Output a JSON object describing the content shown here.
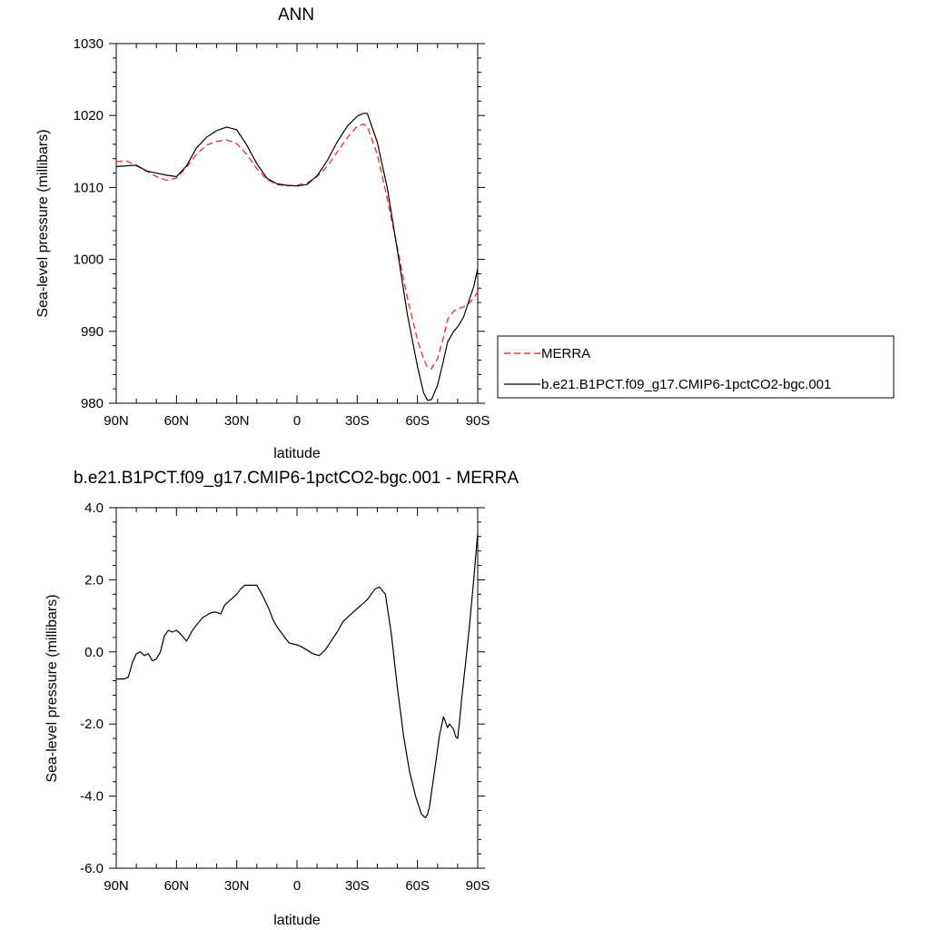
{
  "chart_data": [
    {
      "type": "line",
      "title": "ANN",
      "xlabel": "latitude",
      "ylabel": "Sea-level pressure (millibars)",
      "xlim": [
        90,
        -90
      ],
      "ylim": [
        980,
        1030
      ],
      "x_ticks": [
        90,
        60,
        30,
        0,
        -30,
        -60,
        -90
      ],
      "x_tick_labels": [
        "90N",
        "60N",
        "30N",
        "0",
        "30S",
        "60S",
        "90S"
      ],
      "y_ticks": [
        980,
        990,
        1000,
        1010,
        1020,
        1030
      ],
      "y_tick_labels": [
        "980",
        "990",
        "1000",
        "1010",
        "1020",
        "1030"
      ],
      "grid": false,
      "legend_position": "right",
      "x": [
        90,
        85,
        80,
        75,
        70,
        65,
        60,
        55,
        50,
        45,
        40,
        35,
        30,
        25,
        20,
        15,
        10,
        5,
        0,
        -5,
        -10,
        -15,
        -20,
        -25,
        -30,
        -33,
        -35,
        -40,
        -45,
        -50,
        -55,
        -60,
        -63,
        -65,
        -67,
        -70,
        -73,
        -75,
        -78,
        -80,
        -83,
        -85,
        -88,
        -90
      ],
      "series": [
        {
          "name": "MERRA",
          "color": "#e8383d",
          "dash": "dashed",
          "values": [
            1013.6,
            1013.7,
            1013.0,
            1012.3,
            1011.5,
            1011.0,
            1011.3,
            1012.8,
            1014.6,
            1015.9,
            1016.4,
            1016.6,
            1016.1,
            1014.6,
            1012.6,
            1011.1,
            1010.4,
            1010.2,
            1010.3,
            1010.6,
            1011.5,
            1012.9,
            1014.9,
            1016.9,
            1018.5,
            1018.8,
            1018.5,
            1014.6,
            1008.4,
            1001.6,
            994.6,
            988.8,
            986.2,
            985.0,
            984.8,
            986.2,
            989.2,
            991.6,
            992.8,
            993.1,
            993.4,
            993.7,
            994.6,
            995.5
          ]
        },
        {
          "name": "b.e21.B1PCT.f09_g17.CMIP6-1pctCO2-bgc.001",
          "color": "#000000",
          "dash": "solid",
          "values": [
            1012.9,
            1013.0,
            1013.1,
            1012.3,
            1012.0,
            1011.7,
            1011.5,
            1013.0,
            1015.5,
            1017.0,
            1017.9,
            1018.4,
            1018.0,
            1015.9,
            1013.3,
            1011.3,
            1010.5,
            1010.3,
            1010.2,
            1010.4,
            1011.6,
            1013.7,
            1016.3,
            1018.5,
            1019.9,
            1020.3,
            1020.3,
            1016.3,
            1009.9,
            1001.2,
            992.3,
            985.1,
            981.5,
            980.4,
            980.5,
            982.5,
            986.0,
            988.5,
            990.0,
            990.6,
            992.0,
            993.7,
            996.2,
            998.7
          ]
        }
      ]
    },
    {
      "type": "line",
      "title": "b.e21.B1PCT.f09_g17.CMIP6-1pctCO2-bgc.001 - MERRA",
      "xlabel": "latitude",
      "ylabel": "Sea-level pressure (millibars)",
      "xlim": [
        90,
        -90
      ],
      "ylim": [
        -6.0,
        4.0
      ],
      "x_ticks": [
        90,
        60,
        30,
        0,
        -30,
        -60,
        -90
      ],
      "x_tick_labels": [
        "90N",
        "60N",
        "30N",
        "0",
        "30S",
        "60S",
        "90S"
      ],
      "y_ticks": [
        -6.0,
        -4.0,
        -2.0,
        0.0,
        2.0,
        4.0
      ],
      "y_tick_labels": [
        "-6.0",
        "-4.0",
        "-2.0",
        "0.0",
        "2.0",
        "4.0"
      ],
      "grid": false,
      "x": [
        90,
        86,
        84,
        82,
        80,
        78,
        76,
        74,
        72,
        70,
        68,
        66,
        64,
        62,
        60,
        58,
        55,
        52,
        50,
        47,
        44,
        42,
        40,
        38,
        36,
        34,
        32,
        30,
        28,
        26,
        24,
        22,
        20,
        17,
        14,
        12,
        10,
        8,
        6,
        4,
        2,
        0,
        -2,
        -5,
        -8,
        -11,
        -14,
        -17,
        -20,
        -23,
        -26,
        -29,
        -32,
        -35,
        -37,
        -39,
        -41,
        -44,
        -47,
        -50,
        -53,
        -56,
        -59,
        -62,
        -64,
        -65,
        -66,
        -67,
        -69,
        -71,
        -73,
        -75,
        -76,
        -78,
        -79,
        -80,
        -81,
        -82,
        -84,
        -86,
        -88,
        -90
      ],
      "series": [
        {
          "name": "",
          "color": "#000000",
          "dash": "solid",
          "values": [
            -0.75,
            -0.75,
            -0.7,
            -0.3,
            -0.05,
            0.0,
            -0.1,
            -0.05,
            -0.25,
            -0.2,
            0.0,
            0.45,
            0.6,
            0.55,
            0.6,
            0.5,
            0.3,
            0.6,
            0.75,
            0.95,
            1.05,
            1.1,
            1.1,
            1.05,
            1.3,
            1.4,
            1.5,
            1.6,
            1.75,
            1.85,
            1.85,
            1.85,
            1.85,
            1.55,
            1.2,
            0.9,
            0.7,
            0.55,
            0.4,
            0.25,
            0.22,
            0.2,
            0.15,
            0.05,
            -0.05,
            -0.1,
            0.05,
            0.3,
            0.55,
            0.85,
            1.0,
            1.15,
            1.3,
            1.45,
            1.6,
            1.75,
            1.8,
            1.6,
            0.5,
            -1.0,
            -2.3,
            -3.3,
            -4.0,
            -4.5,
            -4.6,
            -4.5,
            -4.3,
            -3.9,
            -3.1,
            -2.3,
            -1.8,
            -2.1,
            -2.0,
            -2.15,
            -2.35,
            -2.4,
            -1.9,
            -1.3,
            -0.3,
            0.8,
            2.0,
            3.3
          ]
        }
      ]
    }
  ]
}
